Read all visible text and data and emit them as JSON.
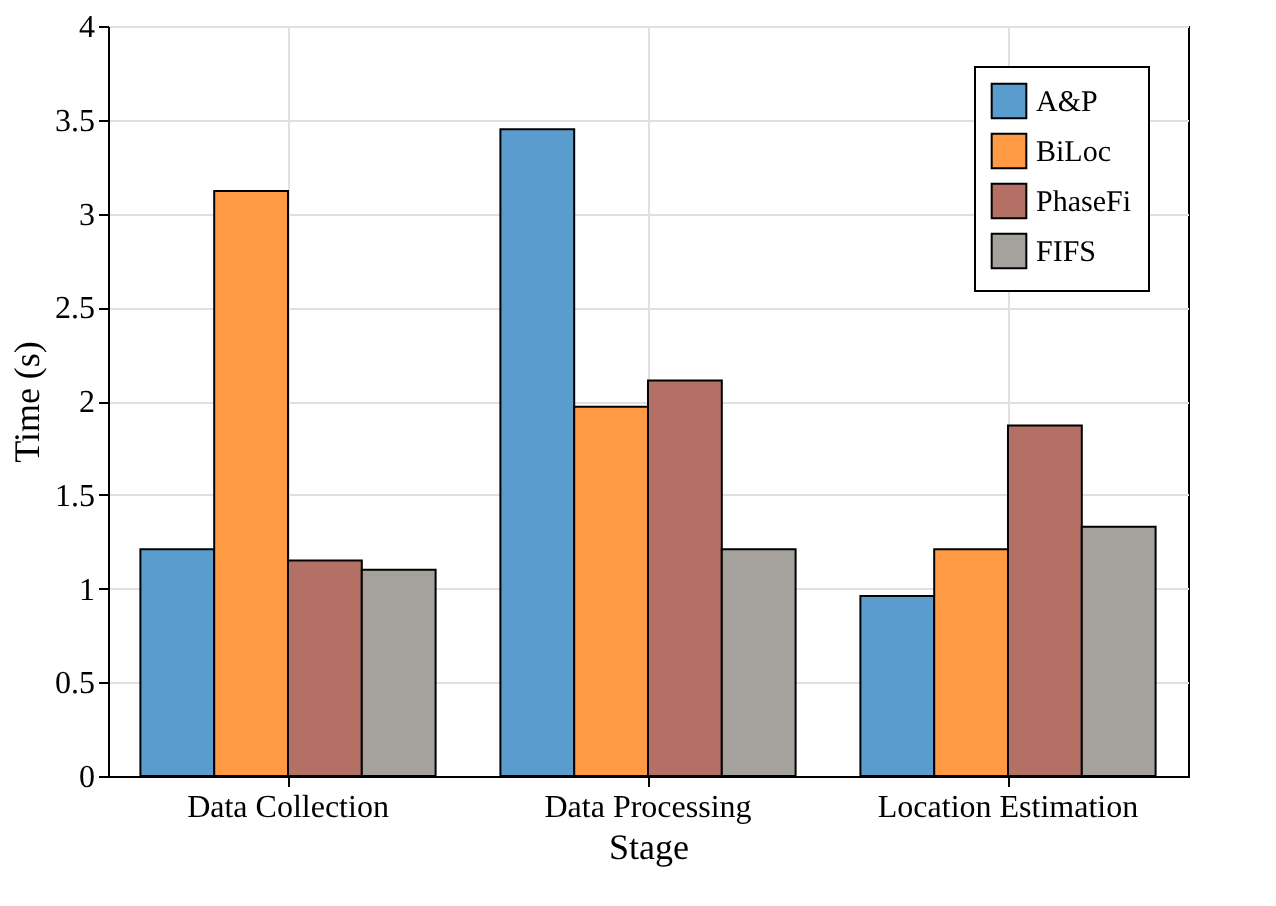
{
  "chart_data": {
    "type": "bar",
    "xlabel": "Stage",
    "ylabel": "Time (s)",
    "categories": [
      "Data Collection",
      "Data Processing",
      "Location Estimation"
    ],
    "series": [
      {
        "name": "A&P",
        "color": "#5b9ccf",
        "values": [
          1.21,
          3.45,
          0.96
        ]
      },
      {
        "name": "BiLoc",
        "color": "#fd9a43",
        "values": [
          3.12,
          1.97,
          1.21
        ]
      },
      {
        "name": "PhaseFi",
        "color": "#b47064",
        "values": [
          1.15,
          2.11,
          1.87
        ]
      },
      {
        "name": "FIFS",
        "color": "#a5a29d",
        "values": [
          1.1,
          1.21,
          1.33
        ]
      }
    ],
    "ylim": [
      0,
      4
    ],
    "yticks": [
      0,
      0.5,
      1,
      1.5,
      2,
      2.5,
      3,
      3.5,
      4
    ],
    "grid": true,
    "legend": "top right"
  }
}
